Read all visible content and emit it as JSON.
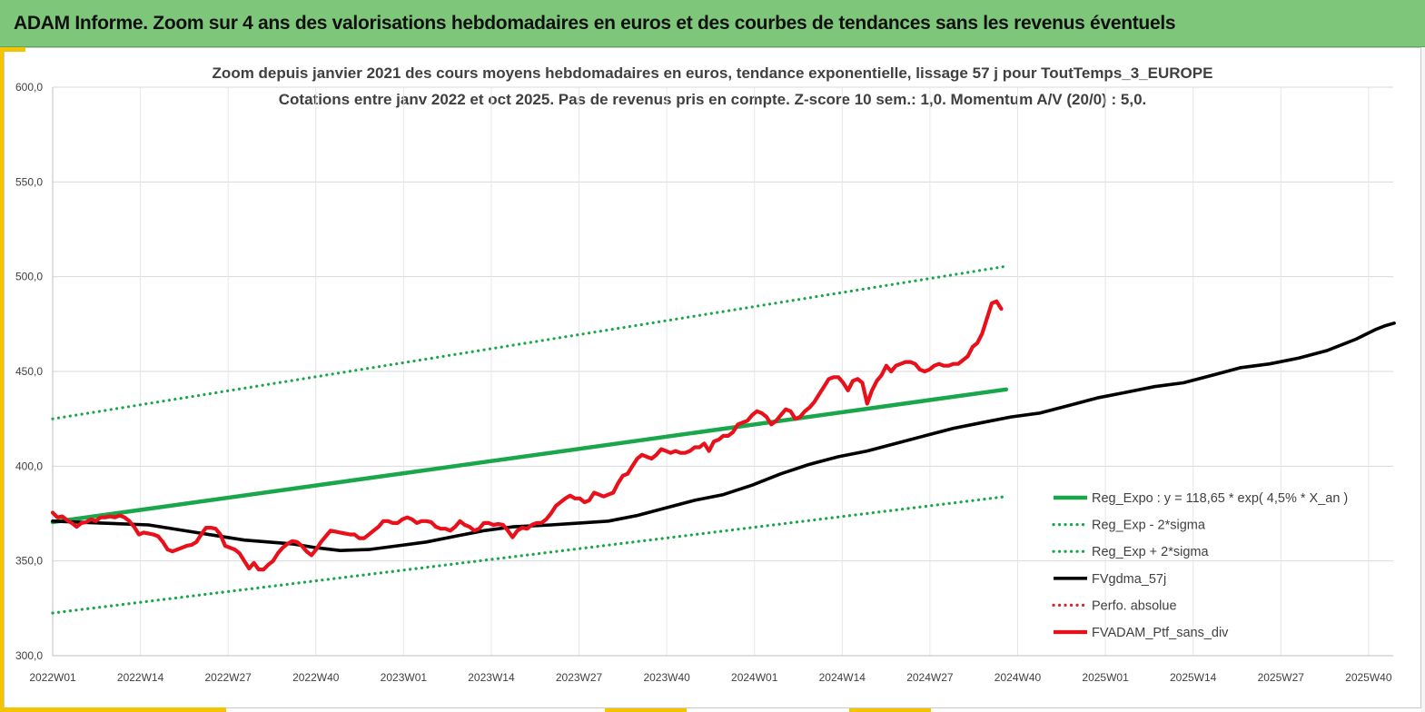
{
  "banner": {
    "title": "ADAM Informe. Zoom sur 4 ans des valorisations hebdomadaires en euros et des courbes de tendances sans les revenus éventuels"
  },
  "colors": {
    "banner": "#7dc67a",
    "accent": "#f5c400",
    "trend": "#1aa64a",
    "band": "#1aa64a",
    "moving_average": "#000000",
    "absolute_perf": "#d9262a",
    "portfolio": "#e8101a"
  },
  "chart_data": {
    "type": "line",
    "title": "Zoom depuis janvier 2021 des cours moyens hebdomadaires  en euros, tendance exponentielle, lissage 57 j pour ToutTemps_3_EUROPE",
    "subtitle": "Cotations entre janv 2022 et oct 2025. Pas de revenus pris en compte. Z-score 10 sem.: 1,0. Momentum A/V (20/0) : 5,0.",
    "ylim": [
      300,
      600
    ],
    "yticks": [
      "300,0",
      "350,0",
      "400,0",
      "450,0",
      "500,0",
      "550,0",
      "600,0"
    ],
    "x_labels": [
      "2022W01",
      "2022W14",
      "2022W27",
      "2022W40",
      "2023W01",
      "2023W14",
      "2023W27",
      "2023W40",
      "2024W01",
      "2024W14",
      "2024W27",
      "2024W40",
      "2025W01",
      "2025W14",
      "2025W27",
      "2025W40"
    ],
    "x_step_weeks": 13,
    "n_weeks": 200,
    "grid": true,
    "legend_position": "bottom-right",
    "series": [
      {
        "name": "Reg_Expo : y = 118,65 * exp( 4,5% * X_an )",
        "style": "solid-thick",
        "points": [
          [
            0,
            370.5
          ],
          [
            199,
            440.5
          ]
        ]
      },
      {
        "name": "Reg_Exp - 2*sigma",
        "style": "dotted",
        "points": [
          [
            0,
            322.5
          ],
          [
            199,
            384
          ]
        ]
      },
      {
        "name": "Reg_Exp + 2*sigma",
        "style": "dotted",
        "points": [
          [
            0,
            425
          ],
          [
            199,
            505.5
          ]
        ]
      },
      {
        "name": "FVgdma_57j",
        "style": "solid",
        "points": [
          [
            0,
            371
          ],
          [
            10,
            370
          ],
          [
            20,
            369
          ],
          [
            30,
            365
          ],
          [
            40,
            361
          ],
          [
            50,
            359
          ],
          [
            55,
            357
          ],
          [
            60,
            355.5
          ],
          [
            66,
            356
          ],
          [
            72,
            358
          ],
          [
            78,
            360
          ],
          [
            84,
            363
          ],
          [
            90,
            366
          ],
          [
            96,
            368
          ],
          [
            104,
            369
          ],
          [
            110,
            370
          ],
          [
            116,
            371
          ],
          [
            122,
            374
          ],
          [
            128,
            378
          ],
          [
            134,
            382
          ],
          [
            140,
            385
          ],
          [
            146,
            390
          ],
          [
            152,
            396
          ],
          [
            158,
            401
          ],
          [
            164,
            405
          ],
          [
            170,
            408
          ],
          [
            176,
            412
          ],
          [
            182,
            416
          ],
          [
            188,
            420
          ],
          [
            194,
            423
          ],
          [
            200,
            426
          ],
          [
            206,
            428
          ],
          [
            212,
            432
          ],
          [
            218,
            436
          ],
          [
            224,
            439
          ],
          [
            230,
            442
          ],
          [
            236,
            444
          ],
          [
            242,
            448
          ],
          [
            248,
            452
          ],
          [
            254,
            454
          ],
          [
            260,
            457
          ],
          [
            266,
            461
          ],
          [
            272,
            467
          ],
          [
            276,
            472
          ],
          [
            278,
            474
          ],
          [
            280,
            475.5
          ]
        ]
      },
      {
        "name": "Perfo. absolue",
        "style": "dotted-red",
        "points": []
      },
      {
        "name": "FVADAM_Ptf_sans_div",
        "style": "solid-thick-red",
        "points": [
          [
            0,
            375.5
          ],
          [
            1,
            373
          ],
          [
            2,
            373.5
          ],
          [
            3,
            371.5
          ],
          [
            4,
            370
          ],
          [
            5,
            368
          ],
          [
            6,
            370
          ],
          [
            7,
            370.5
          ],
          [
            8,
            372
          ],
          [
            9,
            371
          ],
          [
            10,
            373
          ],
          [
            11,
            373
          ],
          [
            12,
            373.5
          ],
          [
            13,
            373
          ],
          [
            14,
            374
          ],
          [
            15,
            373
          ],
          [
            16,
            371
          ],
          [
            17,
            368
          ],
          [
            18,
            364
          ],
          [
            19,
            365
          ],
          [
            20,
            364.5
          ],
          [
            21,
            364
          ],
          [
            22,
            363
          ],
          [
            23,
            360
          ],
          [
            24,
            356
          ],
          [
            25,
            355
          ],
          [
            26,
            356
          ],
          [
            27,
            357
          ],
          [
            28,
            358
          ],
          [
            29,
            358.5
          ],
          [
            30,
            360
          ],
          [
            31,
            364
          ],
          [
            32,
            367.5
          ],
          [
            33,
            367.5
          ],
          [
            34,
            367
          ],
          [
            35,
            364
          ],
          [
            36,
            358
          ],
          [
            37,
            357
          ],
          [
            38,
            356
          ],
          [
            39,
            354
          ],
          [
            40,
            350
          ],
          [
            41,
            346
          ],
          [
            42,
            349
          ],
          [
            43,
            345.5
          ],
          [
            44,
            345.5
          ],
          [
            45,
            348
          ],
          [
            46,
            350
          ],
          [
            47,
            354
          ],
          [
            48,
            357
          ],
          [
            49,
            359
          ],
          [
            50,
            360.5
          ],
          [
            51,
            360
          ],
          [
            52,
            358
          ],
          [
            53,
            355
          ],
          [
            54,
            353
          ],
          [
            55,
            356
          ],
          [
            56,
            360
          ],
          [
            57,
            363
          ],
          [
            58,
            366
          ],
          [
            59,
            365.5
          ],
          [
            60,
            365
          ],
          [
            61,
            364.5
          ],
          [
            62,
            364
          ],
          [
            63,
            364
          ],
          [
            64,
            362
          ],
          [
            65,
            362
          ],
          [
            66,
            364
          ],
          [
            67,
            366
          ],
          [
            68,
            368
          ],
          [
            69,
            371
          ],
          [
            70,
            371
          ],
          [
            71,
            370
          ],
          [
            72,
            370
          ],
          [
            73,
            372
          ],
          [
            74,
            373
          ],
          [
            75,
            372
          ],
          [
            76,
            370
          ],
          [
            77,
            371
          ],
          [
            78,
            371
          ],
          [
            79,
            370.5
          ],
          [
            80,
            368
          ],
          [
            81,
            367
          ],
          [
            82,
            367
          ],
          [
            83,
            366
          ],
          [
            84,
            368
          ],
          [
            85,
            371
          ],
          [
            86,
            369
          ],
          [
            87,
            368
          ],
          [
            88,
            366
          ],
          [
            89,
            367
          ],
          [
            90,
            370
          ],
          [
            91,
            370
          ],
          [
            92,
            369
          ],
          [
            93,
            369.5
          ],
          [
            94,
            369
          ],
          [
            95,
            366
          ],
          [
            96,
            362.5
          ],
          [
            97,
            366
          ],
          [
            98,
            367.5
          ],
          [
            99,
            367
          ],
          [
            100,
            369
          ],
          [
            101,
            370
          ],
          [
            102,
            370
          ],
          [
            103,
            372
          ],
          [
            104,
            375
          ],
          [
            105,
            379
          ],
          [
            106,
            381
          ],
          [
            107,
            383
          ],
          [
            108,
            384.5
          ],
          [
            109,
            383
          ],
          [
            110,
            383
          ],
          [
            111,
            381
          ],
          [
            112,
            382
          ],
          [
            113,
            386
          ],
          [
            114,
            385
          ],
          [
            115,
            384
          ],
          [
            116,
            385
          ],
          [
            117,
            386
          ],
          [
            118,
            391
          ],
          [
            119,
            395
          ],
          [
            120,
            396
          ],
          [
            121,
            400
          ],
          [
            122,
            404
          ],
          [
            123,
            406
          ],
          [
            124,
            405
          ],
          [
            125,
            404
          ],
          [
            126,
            406
          ],
          [
            127,
            409
          ],
          [
            128,
            408
          ],
          [
            129,
            407
          ],
          [
            130,
            408
          ],
          [
            131,
            407
          ],
          [
            132,
            407
          ],
          [
            133,
            408
          ],
          [
            134,
            410
          ],
          [
            135,
            410
          ],
          [
            136,
            412
          ],
          [
            137,
            408
          ],
          [
            138,
            413
          ],
          [
            139,
            414
          ],
          [
            140,
            416
          ],
          [
            141,
            416
          ],
          [
            142,
            418
          ],
          [
            143,
            422
          ],
          [
            144,
            423
          ],
          [
            145,
            424
          ],
          [
            146,
            427
          ],
          [
            147,
            429
          ],
          [
            148,
            428
          ],
          [
            149,
            426
          ],
          [
            150,
            422
          ],
          [
            151,
            424
          ],
          [
            152,
            427
          ],
          [
            153,
            430
          ],
          [
            154,
            429
          ],
          [
            155,
            425
          ],
          [
            156,
            426
          ],
          [
            157,
            429
          ],
          [
            158,
            431
          ],
          [
            159,
            434
          ],
          [
            160,
            438
          ],
          [
            161,
            442
          ],
          [
            162,
            446
          ],
          [
            163,
            447
          ],
          [
            164,
            447
          ],
          [
            165,
            444
          ],
          [
            166,
            440
          ],
          [
            167,
            445
          ],
          [
            168,
            446
          ],
          [
            169,
            444
          ],
          [
            170,
            433
          ],
          [
            171,
            440
          ],
          [
            172,
            445
          ],
          [
            173,
            448
          ],
          [
            174,
            453
          ],
          [
            175,
            450
          ],
          [
            176,
            453
          ],
          [
            177,
            454
          ],
          [
            178,
            455
          ],
          [
            179,
            455
          ],
          [
            180,
            454
          ],
          [
            181,
            451
          ],
          [
            182,
            450
          ],
          [
            183,
            451
          ],
          [
            184,
            453
          ],
          [
            185,
            454
          ],
          [
            186,
            453
          ],
          [
            187,
            453
          ],
          [
            188,
            454
          ],
          [
            189,
            454
          ],
          [
            190,
            456
          ],
          [
            191,
            458
          ],
          [
            192,
            463
          ],
          [
            193,
            465
          ],
          [
            194,
            470
          ],
          [
            195,
            478
          ],
          [
            196,
            486
          ],
          [
            197,
            487
          ],
          [
            198,
            483
          ]
        ]
      }
    ]
  }
}
